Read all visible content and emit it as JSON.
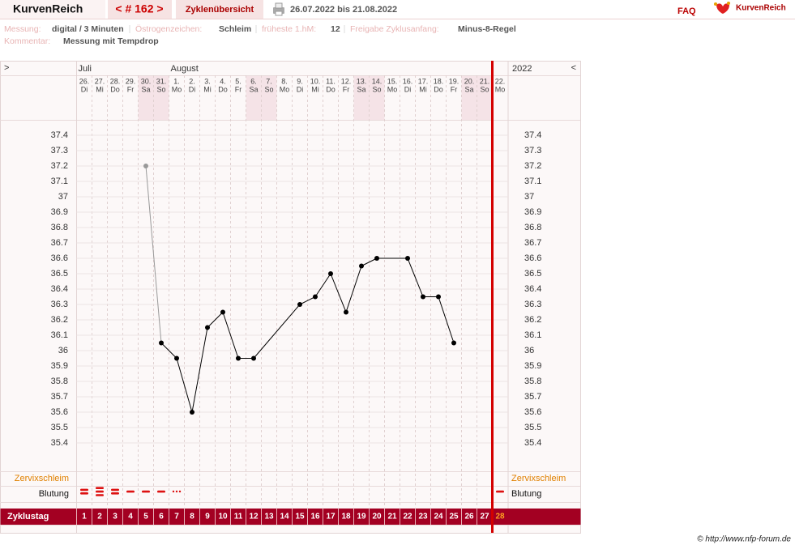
{
  "header": {
    "brand": "KurvenReich",
    "cycle_nav": "< # 162 >",
    "overview": "Zyklenübersicht",
    "period": "26.07.2022 bis 21.08.2022",
    "faq": "FAQ",
    "logo": "KurvenReich"
  },
  "info": {
    "items": [
      {
        "label": "Messung:",
        "value": "digital / 3 Minuten"
      },
      {
        "label": "Östrogenzeichen:",
        "value": "Schleim"
      },
      {
        "label": "früheste 1.hM:",
        "value": "12"
      },
      {
        "label": "Freigabe Zyklusanfang:",
        "value": "Minus-8-Regel"
      }
    ],
    "comment": {
      "label": "Kommentar:",
      "value": "Messung mit Tempdrop"
    }
  },
  "chart_data": {
    "type": "line",
    "nav_left": ">",
    "nav_right": "<",
    "year": "2022",
    "month_labels": [
      "Juli",
      null,
      null,
      null,
      null,
      null,
      "August",
      null,
      null,
      null,
      null,
      null,
      null,
      null,
      null,
      null,
      null,
      null,
      null,
      null,
      null,
      null,
      null,
      null,
      null,
      null,
      null,
      null
    ],
    "categories": [
      "26.",
      "27.",
      "28.",
      "29.",
      "30.",
      "31.",
      "1.",
      "2.",
      "3.",
      "4.",
      "5.",
      "6.",
      "7.",
      "8.",
      "9.",
      "10.",
      "11.",
      "12.",
      "13.",
      "14.",
      "15.",
      "16.",
      "17.",
      "18.",
      "19.",
      "20.",
      "21.",
      "22."
    ],
    "weekdays": [
      "Di",
      "Mi",
      "Do",
      "Fr",
      "Sa",
      "So",
      "Mo",
      "Di",
      "Mi",
      "Do",
      "Fr",
      "Sa",
      "So",
      "Mo",
      "Di",
      "Mi",
      "Do",
      "Fr",
      "Sa",
      "So",
      "Mo",
      "Di",
      "Mi",
      "Do",
      "Fr",
      "Sa",
      "So",
      "Mo"
    ],
    "series": [
      {
        "color": "#000000",
        "x": [
          5,
          6,
          7,
          8,
          9,
          10,
          11,
          12,
          15,
          16,
          17,
          18,
          19,
          20,
          22,
          23,
          24,
          25
        ],
        "values": [
          37.2,
          36.05,
          35.95,
          35.6,
          36.15,
          36.25,
          35.95,
          35.95,
          36.3,
          36.35,
          36.5,
          36.25,
          36.55,
          36.6,
          36.6,
          36.35,
          36.35,
          36.05
        ],
        "point_colors": [
          "#999999",
          "#000000",
          "#000000",
          "#000000",
          "#000000",
          "#000000",
          "#000000",
          "#000000",
          "#000000",
          "#000000",
          "#000000",
          "#000000",
          "#000000",
          "#000000",
          "#000000",
          "#000000",
          "#000000",
          "#000000"
        ]
      }
    ],
    "xlim": [
      0.5,
      28.5
    ],
    "ylim": [
      35.2,
      37.5
    ],
    "yticks": [
      35.4,
      35.5,
      35.6,
      35.7,
      35.8,
      35.9,
      36,
      36.1,
      36.2,
      36.3,
      36.4,
      36.5,
      36.6,
      36.7,
      36.8,
      36.9,
      37,
      37.1,
      37.2,
      37.3,
      37.4
    ],
    "grid": true,
    "mucus_label": "Zervixschleim",
    "bleeding_label": "Blutung",
    "bleeding": [
      2,
      3,
      2,
      1,
      1,
      1,
      0.5,
      null,
      null,
      null,
      null,
      null,
      null,
      null,
      null,
      null,
      null,
      null,
      null,
      null,
      null,
      null,
      null,
      null,
      null,
      null,
      null,
      1
    ],
    "bleeding_color": "#dd1111",
    "cycle_day_label": "Zyklustag",
    "cycle_days": [
      1,
      2,
      3,
      4,
      5,
      6,
      7,
      8,
      9,
      10,
      11,
      12,
      13,
      14,
      15,
      16,
      17,
      18,
      19,
      20,
      21,
      22,
      23,
      24,
      25,
      26,
      27,
      28
    ]
  },
  "footer": "© http://www.nfp-forum.de"
}
